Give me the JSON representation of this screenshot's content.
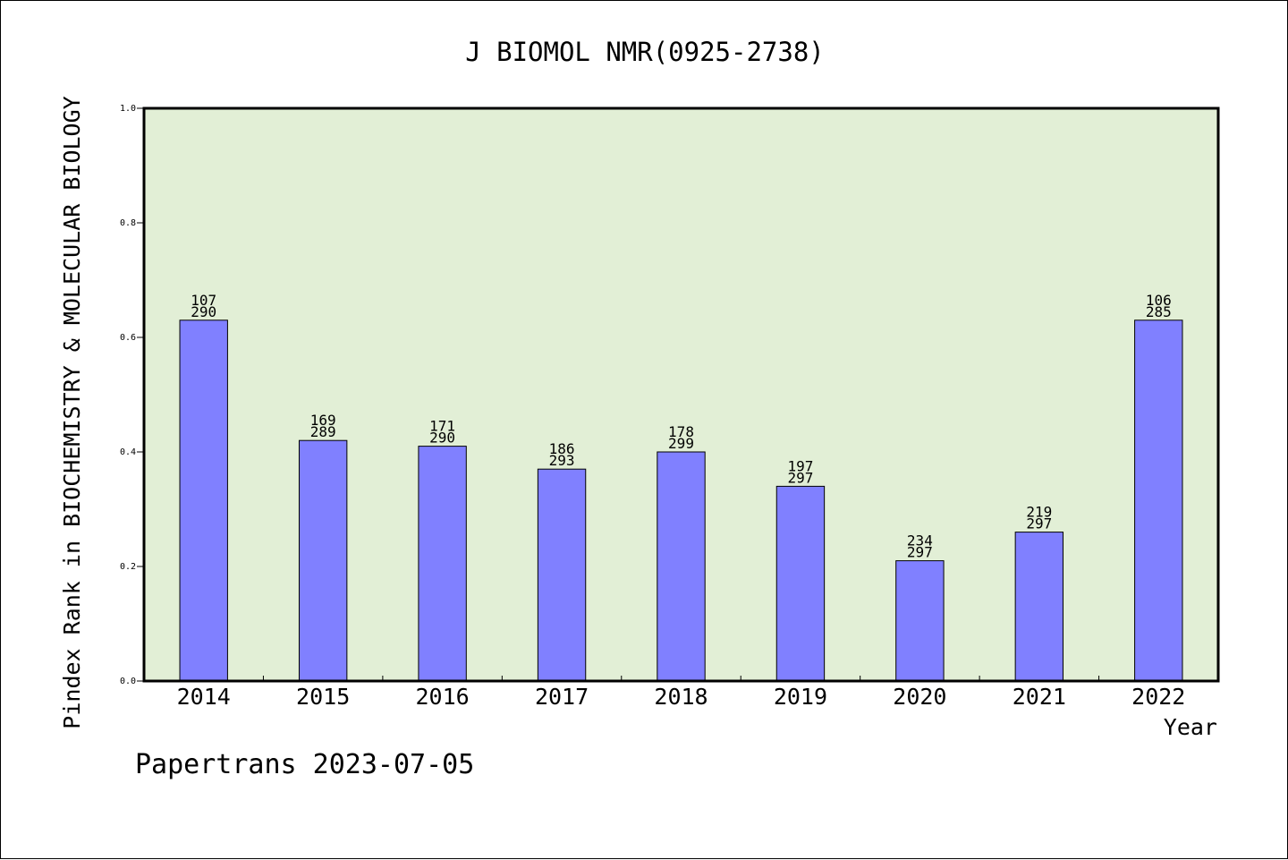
{
  "chart_data": {
    "type": "bar",
    "title": "J BIOMOL NMR(0925-2738)",
    "xlabel": "Year",
    "ylabel": "Pindex Rank in BIOCHEMISTRY & MOLECULAR BIOLOGY",
    "ylim": [
      0,
      1.0
    ],
    "yticks": [
      "0.0",
      "0.2",
      "0.4",
      "0.6",
      "0.8",
      "1.0"
    ],
    "categories": [
      "2014",
      "2015",
      "2016",
      "2017",
      "2018",
      "2019",
      "2020",
      "2021",
      "2022"
    ],
    "values": [
      0.63,
      0.42,
      0.41,
      0.37,
      0.4,
      0.34,
      0.21,
      0.26,
      0.63
    ],
    "ranks": [
      "107",
      "169",
      "171",
      "186",
      "178",
      "197",
      "234",
      "219",
      "106"
    ],
    "totals": [
      "290",
      "289",
      "290",
      "293",
      "299",
      "297",
      "297",
      "297",
      "285"
    ],
    "grid": false,
    "colors": {
      "plot_background": "#e2efd6",
      "bar_fill": "#8080ff",
      "bar_stroke": "#000000"
    }
  },
  "footer": {
    "text": "Papertrans 2023-07-05"
  }
}
